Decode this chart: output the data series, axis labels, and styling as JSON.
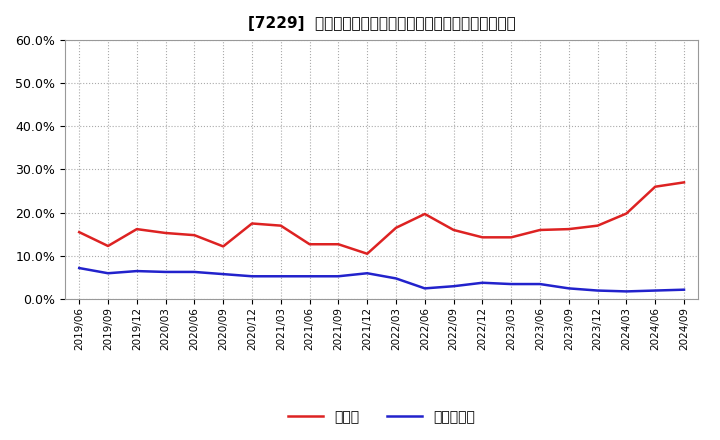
{
  "title": "[7229]  現預金、有利子負債の総資産に対する比率の推移",
  "x_labels": [
    "2019/06",
    "2019/09",
    "2019/12",
    "2020/03",
    "2020/06",
    "2020/09",
    "2020/12",
    "2021/03",
    "2021/06",
    "2021/09",
    "2021/12",
    "2022/03",
    "2022/06",
    "2022/09",
    "2022/12",
    "2023/03",
    "2023/06",
    "2023/09",
    "2023/12",
    "2024/03",
    "2024/06",
    "2024/09"
  ],
  "cash": [
    0.155,
    0.123,
    0.162,
    0.153,
    0.148,
    0.122,
    0.175,
    0.17,
    0.127,
    0.127,
    0.105,
    0.165,
    0.197,
    0.16,
    0.143,
    0.143,
    0.16,
    0.162,
    0.17,
    0.198,
    0.26,
    0.27
  ],
  "interest_bearing_debt": [
    0.072,
    0.06,
    0.065,
    0.063,
    0.063,
    0.058,
    0.053,
    0.053,
    0.053,
    0.053,
    0.06,
    0.048,
    0.025,
    0.03,
    0.038,
    0.035,
    0.035,
    0.025,
    0.02,
    0.018,
    0.02,
    0.022
  ],
  "cash_color": "#dd2222",
  "debt_color": "#2222cc",
  "ylim": [
    0.0,
    0.6
  ],
  "yticks": [
    0.0,
    0.1,
    0.2,
    0.3,
    0.4,
    0.5,
    0.6
  ],
  "legend_cash": "現預金",
  "legend_debt": "有利子負債",
  "background_color": "#ffffff",
  "grid_color": "#aaaaaa"
}
